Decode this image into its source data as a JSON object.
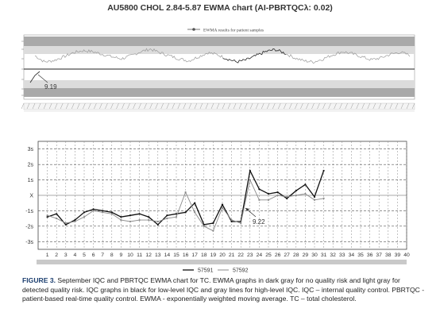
{
  "title": "AU5800 CHOL 2.84-5.87 EWMA chart (AI-PBRTQCλ: 0.02)",
  "top_chart": {
    "legend_label": "EWMA results for patient samples",
    "annotation": "9.19",
    "bands": {
      "dark": "#a9a9a9",
      "light": "#dcdcdc"
    }
  },
  "chart_data": [
    {
      "type": "line",
      "title": "AU5800 CHOL 2.84-5.87 EWMA chart (AI-PBRTQCλ: 0.02)",
      "series": [
        {
          "name": "EWMA results for patient samples",
          "values": [
            0.72,
            0.6,
            0.63,
            0.7,
            0.78,
            0.82,
            0.8,
            0.75,
            0.7,
            0.66,
            0.72,
            0.8,
            0.85,
            0.78,
            0.72,
            0.66,
            0.62,
            0.7,
            0.78,
            0.74,
            0.66,
            0.6,
            0.64,
            0.72,
            0.8,
            0.84,
            0.77,
            0.68,
            0.62,
            0.6,
            0.66,
            0.74,
            0.8,
            0.76,
            0.7,
            0.64,
            0.68,
            0.75,
            0.79,
            0.73
          ]
        }
      ],
      "annotations": [
        "9.19"
      ]
    },
    {
      "type": "line",
      "x": [
        1,
        2,
        3,
        4,
        5,
        6,
        7,
        8,
        9,
        10,
        11,
        12,
        13,
        14,
        15,
        16,
        17,
        18,
        19,
        20,
        21,
        22,
        23,
        24,
        25,
        26,
        27,
        28,
        29,
        30,
        31
      ],
      "xticks": [
        "1",
        "2",
        "3",
        "4",
        "5",
        "6",
        "7",
        "8",
        "9",
        "10",
        "11",
        "12",
        "13",
        "14",
        "15",
        "16",
        "17",
        "18",
        "19",
        "20",
        "21",
        "22",
        "23",
        "24",
        "25",
        "26",
        "27",
        "28",
        "29",
        "30",
        "31",
        "32",
        "33",
        "34",
        "35",
        "36",
        "37",
        "38",
        "39",
        "40"
      ],
      "yticks": [
        "3s",
        "2s",
        "1s",
        "X",
        "-1s",
        "-2s",
        "-3s"
      ],
      "ylim": [
        -3.5,
        3.5
      ],
      "xlim": [
        0,
        40
      ],
      "grid": true,
      "legend_position": "bottom-left",
      "series": [
        {
          "name": "57591",
          "color": "#111111",
          "values": [
            -1.4,
            -1.2,
            -1.9,
            -1.6,
            -1.1,
            -0.9,
            -1.0,
            -1.1,
            -1.4,
            -1.3,
            -1.2,
            -1.4,
            -1.9,
            -1.3,
            -1.2,
            -1.1,
            -0.5,
            -1.9,
            -1.8,
            -0.6,
            -1.7,
            -1.7,
            1.6,
            0.4,
            0.1,
            0.2,
            -0.2,
            0.3,
            0.7,
            -0.1,
            1.6
          ]
        },
        {
          "name": "57592",
          "color": "#8a8a8a",
          "values": [
            -1.3,
            -1.5,
            -1.8,
            -1.7,
            -1.4,
            -1.0,
            -1.1,
            -1.2,
            -1.6,
            -1.7,
            -1.6,
            -1.6,
            -1.7,
            -1.5,
            -1.4,
            0.2,
            -1.1,
            -2.0,
            -2.3,
            -0.8,
            -1.6,
            -1.8,
            1.0,
            -0.3,
            -0.3,
            0.0,
            -0.1,
            0.0,
            0.1,
            -0.3,
            -0.2
          ]
        }
      ],
      "annotations": [
        "9.22"
      ]
    }
  ],
  "legend": {
    "item1": "57591",
    "item2": "57592"
  },
  "caption": {
    "figure_label": "FIGURE 3.",
    "text": " September IQC and PBRTQC EWMA chart for TC. EWMA graphs in dark gray for no quality risk and light gray for detected quality risk. IQC graphs in black for low-level IQC and gray lines for high-level IQC. IQC – internal quality control. PBRTQC - patient-based real-time quality control. EWMA - exponentially weighted moving average. TC – total cholesterol."
  }
}
